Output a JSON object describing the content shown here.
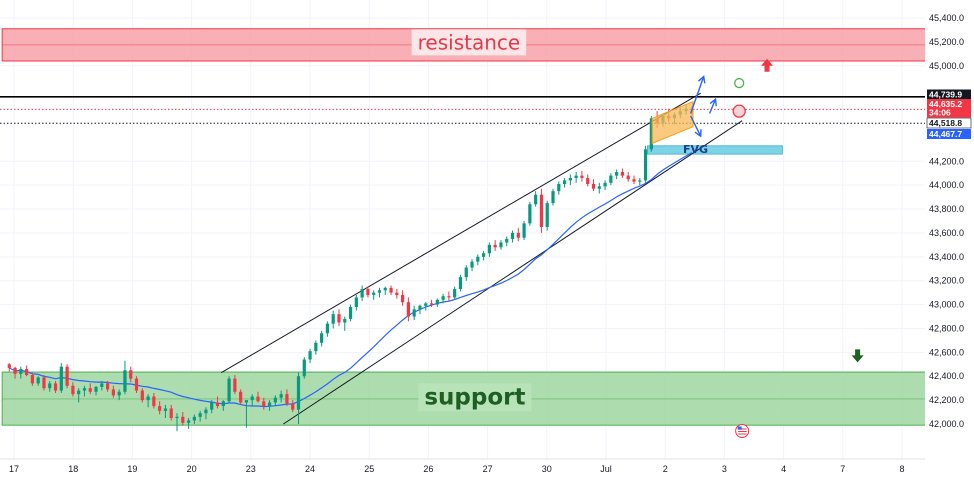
{
  "chart_data": {
    "type": "candlestick",
    "y_axis": {
      "range": [
        41880,
        45480
      ],
      "tick_labels": [
        "45,400.0",
        "45,200.0",
        "45,000.0",
        "44,200.0",
        "44,000.0",
        "43,800.0",
        "43,600.0",
        "43,400.0",
        "43,200.0",
        "43,000.0",
        "42,800.0",
        "42,600.0",
        "42,400.0",
        "42,200.0",
        "42,000.0"
      ],
      "tick_values": [
        45400,
        45200,
        45000,
        44200,
        44000,
        43800,
        43600,
        43400,
        43200,
        43000,
        42800,
        42600,
        42400,
        42200,
        42000
      ]
    },
    "x_axis": {
      "tick_labels": [
        "17",
        "18",
        "19",
        "20",
        "23",
        "24",
        "25",
        "26",
        "27",
        "30",
        "Jul",
        "2",
        "3",
        "4",
        "7",
        "8"
      ],
      "tick_positions": [
        0,
        1,
        2,
        3,
        4,
        5,
        6,
        7,
        8,
        9,
        10,
        11,
        12,
        13,
        14,
        15
      ]
    },
    "price_tags": [
      {
        "text": "44,739.9",
        "value": 44739.9,
        "color": "#131722"
      },
      {
        "text": "44,635.2",
        "value": 44635.2,
        "color": "#f23645"
      },
      {
        "text": "34:06",
        "value": 44555,
        "color": "#f23645"
      },
      {
        "text": "44,518.8",
        "value": 44518.8,
        "color": "#ffffff"
      },
      {
        "text": "44,467.7",
        "value": 44467.7,
        "color": "#2962ff"
      }
    ],
    "horizontal_lines": [
      {
        "value": 44739.9,
        "style": "solid",
        "color": "#000000"
      },
      {
        "value": 44635.2,
        "style": "dotted",
        "color": "#f23645"
      },
      {
        "value": 44518.8,
        "style": "dotted",
        "color": "#131722"
      }
    ],
    "zones": [
      {
        "label": "resistance",
        "from": 45040,
        "to": 45310,
        "midline": 45175,
        "x_start": -0.2,
        "x_end": 15.4,
        "fill": "#f7a1a8",
        "stroke": "#f23645"
      },
      {
        "label": "support",
        "from": 41990,
        "to": 42435,
        "midline": 42210,
        "x_start": -0.2,
        "x_end": 15.4,
        "fill": "#9fd6a0",
        "stroke": "#4caf50"
      }
    ],
    "fvg": {
      "label": "FVG",
      "from": 44260,
      "to": 44330,
      "x_start": 10.7,
      "x_end": 12.98
    },
    "channel": [
      {
        "x": [
          3.5,
          11.6
        ],
        "y": [
          42430,
          44770
        ]
      },
      {
        "x": [
          4.55,
          12.3
        ],
        "y": [
          42000,
          44540
        ]
      }
    ],
    "flag": {
      "x": [
        10.78,
        11.47
      ],
      "top": [
        44560,
        44700
      ],
      "bottom": [
        44350,
        44490
      ]
    },
    "projection_arrows": [
      {
        "points": [
          [
            11.43,
            44600
          ],
          [
            11.65,
            44910
          ]
        ]
      },
      {
        "points": [
          [
            11.43,
            44580
          ],
          [
            11.6,
            44410
          ]
        ]
      },
      {
        "points": [
          [
            11.75,
            44600
          ],
          [
            11.85,
            44720
          ]
        ]
      }
    ],
    "markers": [
      {
        "type": "circle-green",
        "x": 12.25,
        "y": 44855
      },
      {
        "type": "circle-red",
        "x": 12.25,
        "y": 44620
      },
      {
        "type": "arrow-up-red",
        "x": 12.72,
        "y": 45000
      },
      {
        "type": "arrow-down-green",
        "x": 14.25,
        "y": 42575
      }
    ],
    "candles": [
      [
        42500,
        42510,
        42440,
        42470
      ],
      [
        42470,
        42480,
        42380,
        42420
      ],
      [
        42420,
        42480,
        42380,
        42460
      ],
      [
        42460,
        42490,
        42400,
        42410
      ],
      [
        42410,
        42430,
        42320,
        42340
      ],
      [
        42340,
        42400,
        42320,
        42390
      ],
      [
        42390,
        42410,
        42280,
        42300
      ],
      [
        42300,
        42360,
        42270,
        42340
      ],
      [
        42340,
        42360,
        42260,
        42280
      ],
      [
        42280,
        42510,
        42260,
        42480
      ],
      [
        42480,
        42500,
        42300,
        42320
      ],
      [
        42320,
        42350,
        42230,
        42250
      ],
      [
        42250,
        42300,
        42180,
        42280
      ],
      [
        42280,
        42320,
        42230,
        42300
      ],
      [
        42300,
        42340,
        42250,
        42270
      ],
      [
        42270,
        42320,
        42240,
        42310
      ],
      [
        42310,
        42360,
        42280,
        42340
      ],
      [
        42340,
        42360,
        42270,
        42290
      ],
      [
        42290,
        42320,
        42220,
        42240
      ],
      [
        42240,
        42290,
        42200,
        42270
      ],
      [
        42270,
        42530,
        42250,
        42450
      ],
      [
        42450,
        42480,
        42350,
        42380
      ],
      [
        42380,
        42400,
        42260,
        42280
      ],
      [
        42280,
        42300,
        42180,
        42200
      ],
      [
        42200,
        42250,
        42140,
        42230
      ],
      [
        42230,
        42260,
        42130,
        42150
      ],
      [
        42150,
        42190,
        42080,
        42110
      ],
      [
        42110,
        42160,
        42050,
        42130
      ],
      [
        42130,
        42160,
        42030,
        42050
      ],
      [
        42050,
        42090,
        41940,
        42060
      ],
      [
        42060,
        42100,
        41990,
        42010
      ],
      [
        42010,
        42050,
        41960,
        42030
      ],
      [
        42030,
        42080,
        42000,
        42060
      ],
      [
        42060,
        42110,
        42020,
        42090
      ],
      [
        42090,
        42140,
        42040,
        42120
      ],
      [
        42120,
        42200,
        42090,
        42180
      ],
      [
        42180,
        42230,
        42130,
        42150
      ],
      [
        42150,
        42200,
        42110,
        42190
      ],
      [
        42190,
        42400,
        42180,
        42380
      ],
      [
        42380,
        42410,
        42250,
        42270
      ],
      [
        42270,
        42290,
        42160,
        42180
      ],
      [
        42180,
        42190,
        41970,
        42200
      ],
      [
        42200,
        42250,
        42150,
        42230
      ],
      [
        42230,
        42270,
        42180,
        42190
      ],
      [
        42190,
        42220,
        42120,
        42150
      ],
      [
        42150,
        42200,
        42110,
        42180
      ],
      [
        42180,
        42240,
        42150,
        42220
      ],
      [
        42220,
        42280,
        42180,
        42250
      ],
      [
        42250,
        42290,
        42150,
        42170
      ],
      [
        42170,
        42200,
        42100,
        42120
      ],
      [
        42120,
        42430,
        42000,
        42400
      ],
      [
        42400,
        42560,
        42380,
        42540
      ],
      [
        42540,
        42630,
        42510,
        42610
      ],
      [
        42610,
        42700,
        42580,
        42680
      ],
      [
        42680,
        42780,
        42650,
        42760
      ],
      [
        42760,
        42860,
        42730,
        42840
      ],
      [
        42840,
        42950,
        42800,
        42920
      ],
      [
        42920,
        42960,
        42820,
        42850
      ],
      [
        42850,
        42900,
        42780,
        42880
      ],
      [
        42880,
        43000,
        42860,
        42980
      ],
      [
        42980,
        43080,
        42950,
        43060
      ],
      [
        43060,
        43160,
        43030,
        43130
      ],
      [
        43130,
        43150,
        43060,
        43080
      ],
      [
        43080,
        43120,
        43040,
        43100
      ],
      [
        43100,
        43140,
        43060,
        43120
      ],
      [
        43120,
        43150,
        43080,
        43140
      ],
      [
        43140,
        43160,
        43080,
        43100
      ],
      [
        43100,
        43130,
        43050,
        43080
      ],
      [
        43080,
        43120,
        42990,
        43020
      ],
      [
        43020,
        43060,
        42860,
        42900
      ],
      [
        42900,
        42990,
        42870,
        42960
      ],
      [
        42960,
        43000,
        42920,
        42990
      ],
      [
        42990,
        43020,
        42950,
        43010
      ],
      [
        43010,
        43040,
        42980,
        43000
      ],
      [
        43000,
        43050,
        42980,
        43040
      ],
      [
        43040,
        43090,
        43010,
        43070
      ],
      [
        43070,
        43110,
        43030,
        43060
      ],
      [
        43060,
        43150,
        43040,
        43130
      ],
      [
        43130,
        43250,
        43110,
        43230
      ],
      [
        43230,
        43330,
        43200,
        43310
      ],
      [
        43310,
        43380,
        43280,
        43360
      ],
      [
        43360,
        43420,
        43330,
        43400
      ],
      [
        43400,
        43450,
        43370,
        43430
      ],
      [
        43430,
        43520,
        43400,
        43500
      ],
      [
        43500,
        43540,
        43450,
        43480
      ],
      [
        43480,
        43540,
        43460,
        43520
      ],
      [
        43520,
        43570,
        43490,
        43550
      ],
      [
        43550,
        43620,
        43520,
        43600
      ],
      [
        43600,
        43640,
        43530,
        43560
      ],
      [
        43560,
        43700,
        43540,
        43680
      ],
      [
        43680,
        43860,
        43660,
        43840
      ],
      [
        43840,
        43950,
        43820,
        43920
      ],
      [
        43920,
        43970,
        43600,
        43650
      ],
      [
        43650,
        43870,
        43620,
        43850
      ],
      [
        43850,
        43970,
        43830,
        43950
      ],
      [
        43950,
        44030,
        43920,
        44010
      ],
      [
        44010,
        44060,
        43980,
        44040
      ],
      [
        44040,
        44090,
        44000,
        44060
      ],
      [
        44060,
        44110,
        44020,
        44080
      ],
      [
        44080,
        44120,
        44030,
        44060
      ],
      [
        44060,
        44090,
        43990,
        44010
      ],
      [
        44010,
        44050,
        43950,
        43970
      ],
      [
        43970,
        44020,
        43930,
        43990
      ],
      [
        43990,
        44040,
        43960,
        44020
      ],
      [
        44020,
        44100,
        44000,
        44080
      ],
      [
        44080,
        44130,
        44050,
        44110
      ],
      [
        44110,
        44140,
        44060,
        44080
      ],
      [
        44080,
        44110,
        44030,
        44050
      ],
      [
        44050,
        44080,
        44010,
        44030
      ],
      [
        44030,
        44060,
        44000,
        44040
      ],
      [
        44040,
        44330,
        44020,
        44300
      ],
      [
        44300,
        44580,
        44280,
        44560
      ],
      [
        44560,
        44620,
        44480,
        44520
      ],
      [
        44520,
        44600,
        44490,
        44580
      ],
      [
        44580,
        44640,
        44530,
        44560
      ],
      [
        44560,
        44610,
        44510,
        44590
      ],
      [
        44590,
        44650,
        44560,
        44620
      ],
      [
        44620,
        44680,
        44590,
        44640
      ],
      [
        44640,
        44660,
        44590,
        44635
      ]
    ],
    "moving_average": {
      "period": 20,
      "color": "#2962ff"
    }
  }
}
